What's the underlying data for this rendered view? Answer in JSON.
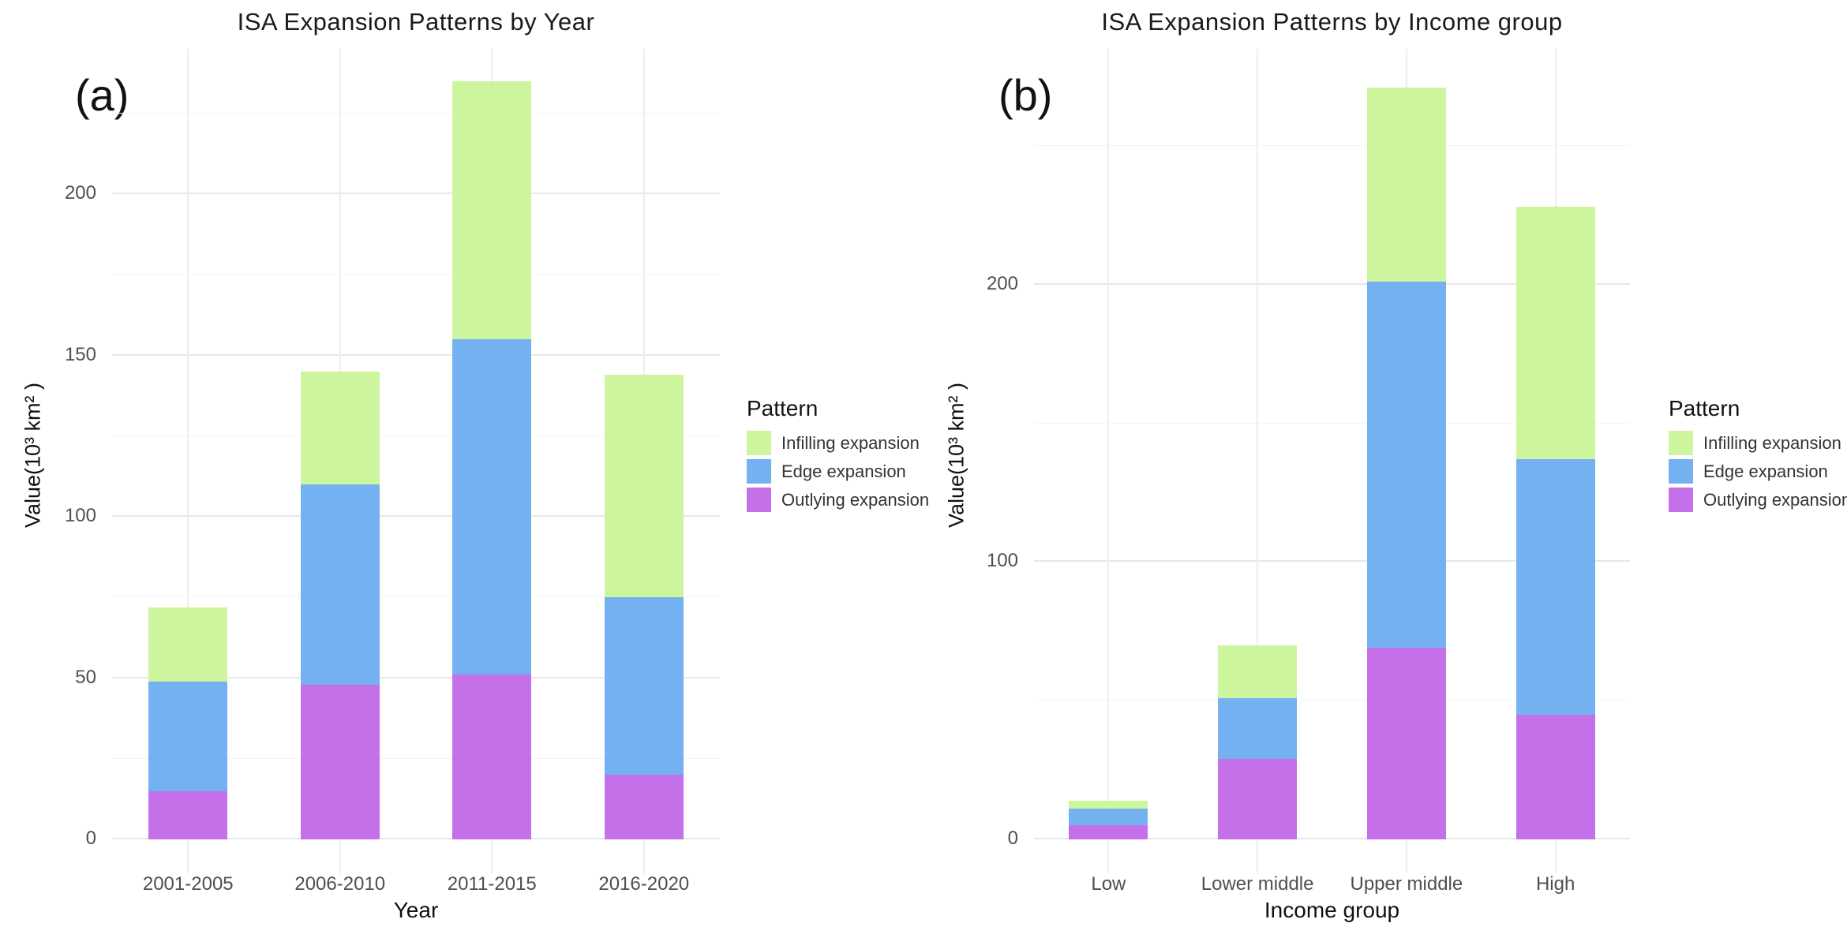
{
  "page": {
    "background": "#ffffff",
    "grid_major_color": "#e7e7e7",
    "grid_minor_color": "#f4f4f4",
    "tick_text_color": "#4f4f4f"
  },
  "legend": {
    "title": "Pattern",
    "items": [
      {
        "label": "Infilling expansion",
        "color": "#cdf59d"
      },
      {
        "label": "Edge expansion",
        "color": "#74b1f0"
      },
      {
        "label": "Outlying expansion",
        "color": "#c470e8"
      }
    ]
  },
  "chart_data": [
    {
      "type": "bar",
      "stacked": true,
      "panel_label": "(a)",
      "title": "ISA Expansion Patterns by Year",
      "xlabel": "Year",
      "ylabel": "Value(10³ km² )",
      "categories": [
        "2001-2005",
        "2006-2010",
        "2011-2015",
        "2016-2020"
      ],
      "series": [
        {
          "name": "Outlying expansion",
          "color": "#c470e8",
          "values": [
            15,
            48,
            51,
            20
          ]
        },
        {
          "name": "Edge expansion",
          "color": "#74b1f0",
          "values": [
            34,
            62,
            104,
            55
          ]
        },
        {
          "name": "Infilling expansion",
          "color": "#cdf59d",
          "values": [
            23,
            35,
            80,
            69
          ]
        }
      ],
      "stack_totals": [
        72,
        145,
        235,
        144
      ],
      "y_ticks": [
        0,
        50,
        100,
        150,
        200
      ],
      "y_minor_step": 25,
      "ylim": [
        0,
        245
      ],
      "grid": true,
      "legend_title": "Pattern",
      "legend_position": "right"
    },
    {
      "type": "bar",
      "stacked": true,
      "panel_label": "(b)",
      "title": "ISA Expansion Patterns by Income group",
      "xlabel": "Income group",
      "ylabel": "Value(10³ km² )",
      "categories": [
        "Low",
        "Lower middle",
        "Upper middle",
        "High"
      ],
      "series": [
        {
          "name": "Outlying expansion",
          "color": "#c470e8",
          "values": [
            5,
            29,
            69,
            45
          ]
        },
        {
          "name": "Edge expansion",
          "color": "#74b1f0",
          "values": [
            6,
            22,
            132,
            92
          ]
        },
        {
          "name": "Infilling expansion",
          "color": "#cdf59d",
          "values": [
            3,
            19,
            70,
            91
          ]
        }
      ],
      "stack_totals": [
        14,
        70,
        271,
        228
      ],
      "y_ticks": [
        0,
        100,
        200
      ],
      "y_minor_step": 50,
      "ylim": [
        0,
        285
      ],
      "grid": true,
      "legend_title": "Pattern",
      "legend_position": "right"
    }
  ]
}
